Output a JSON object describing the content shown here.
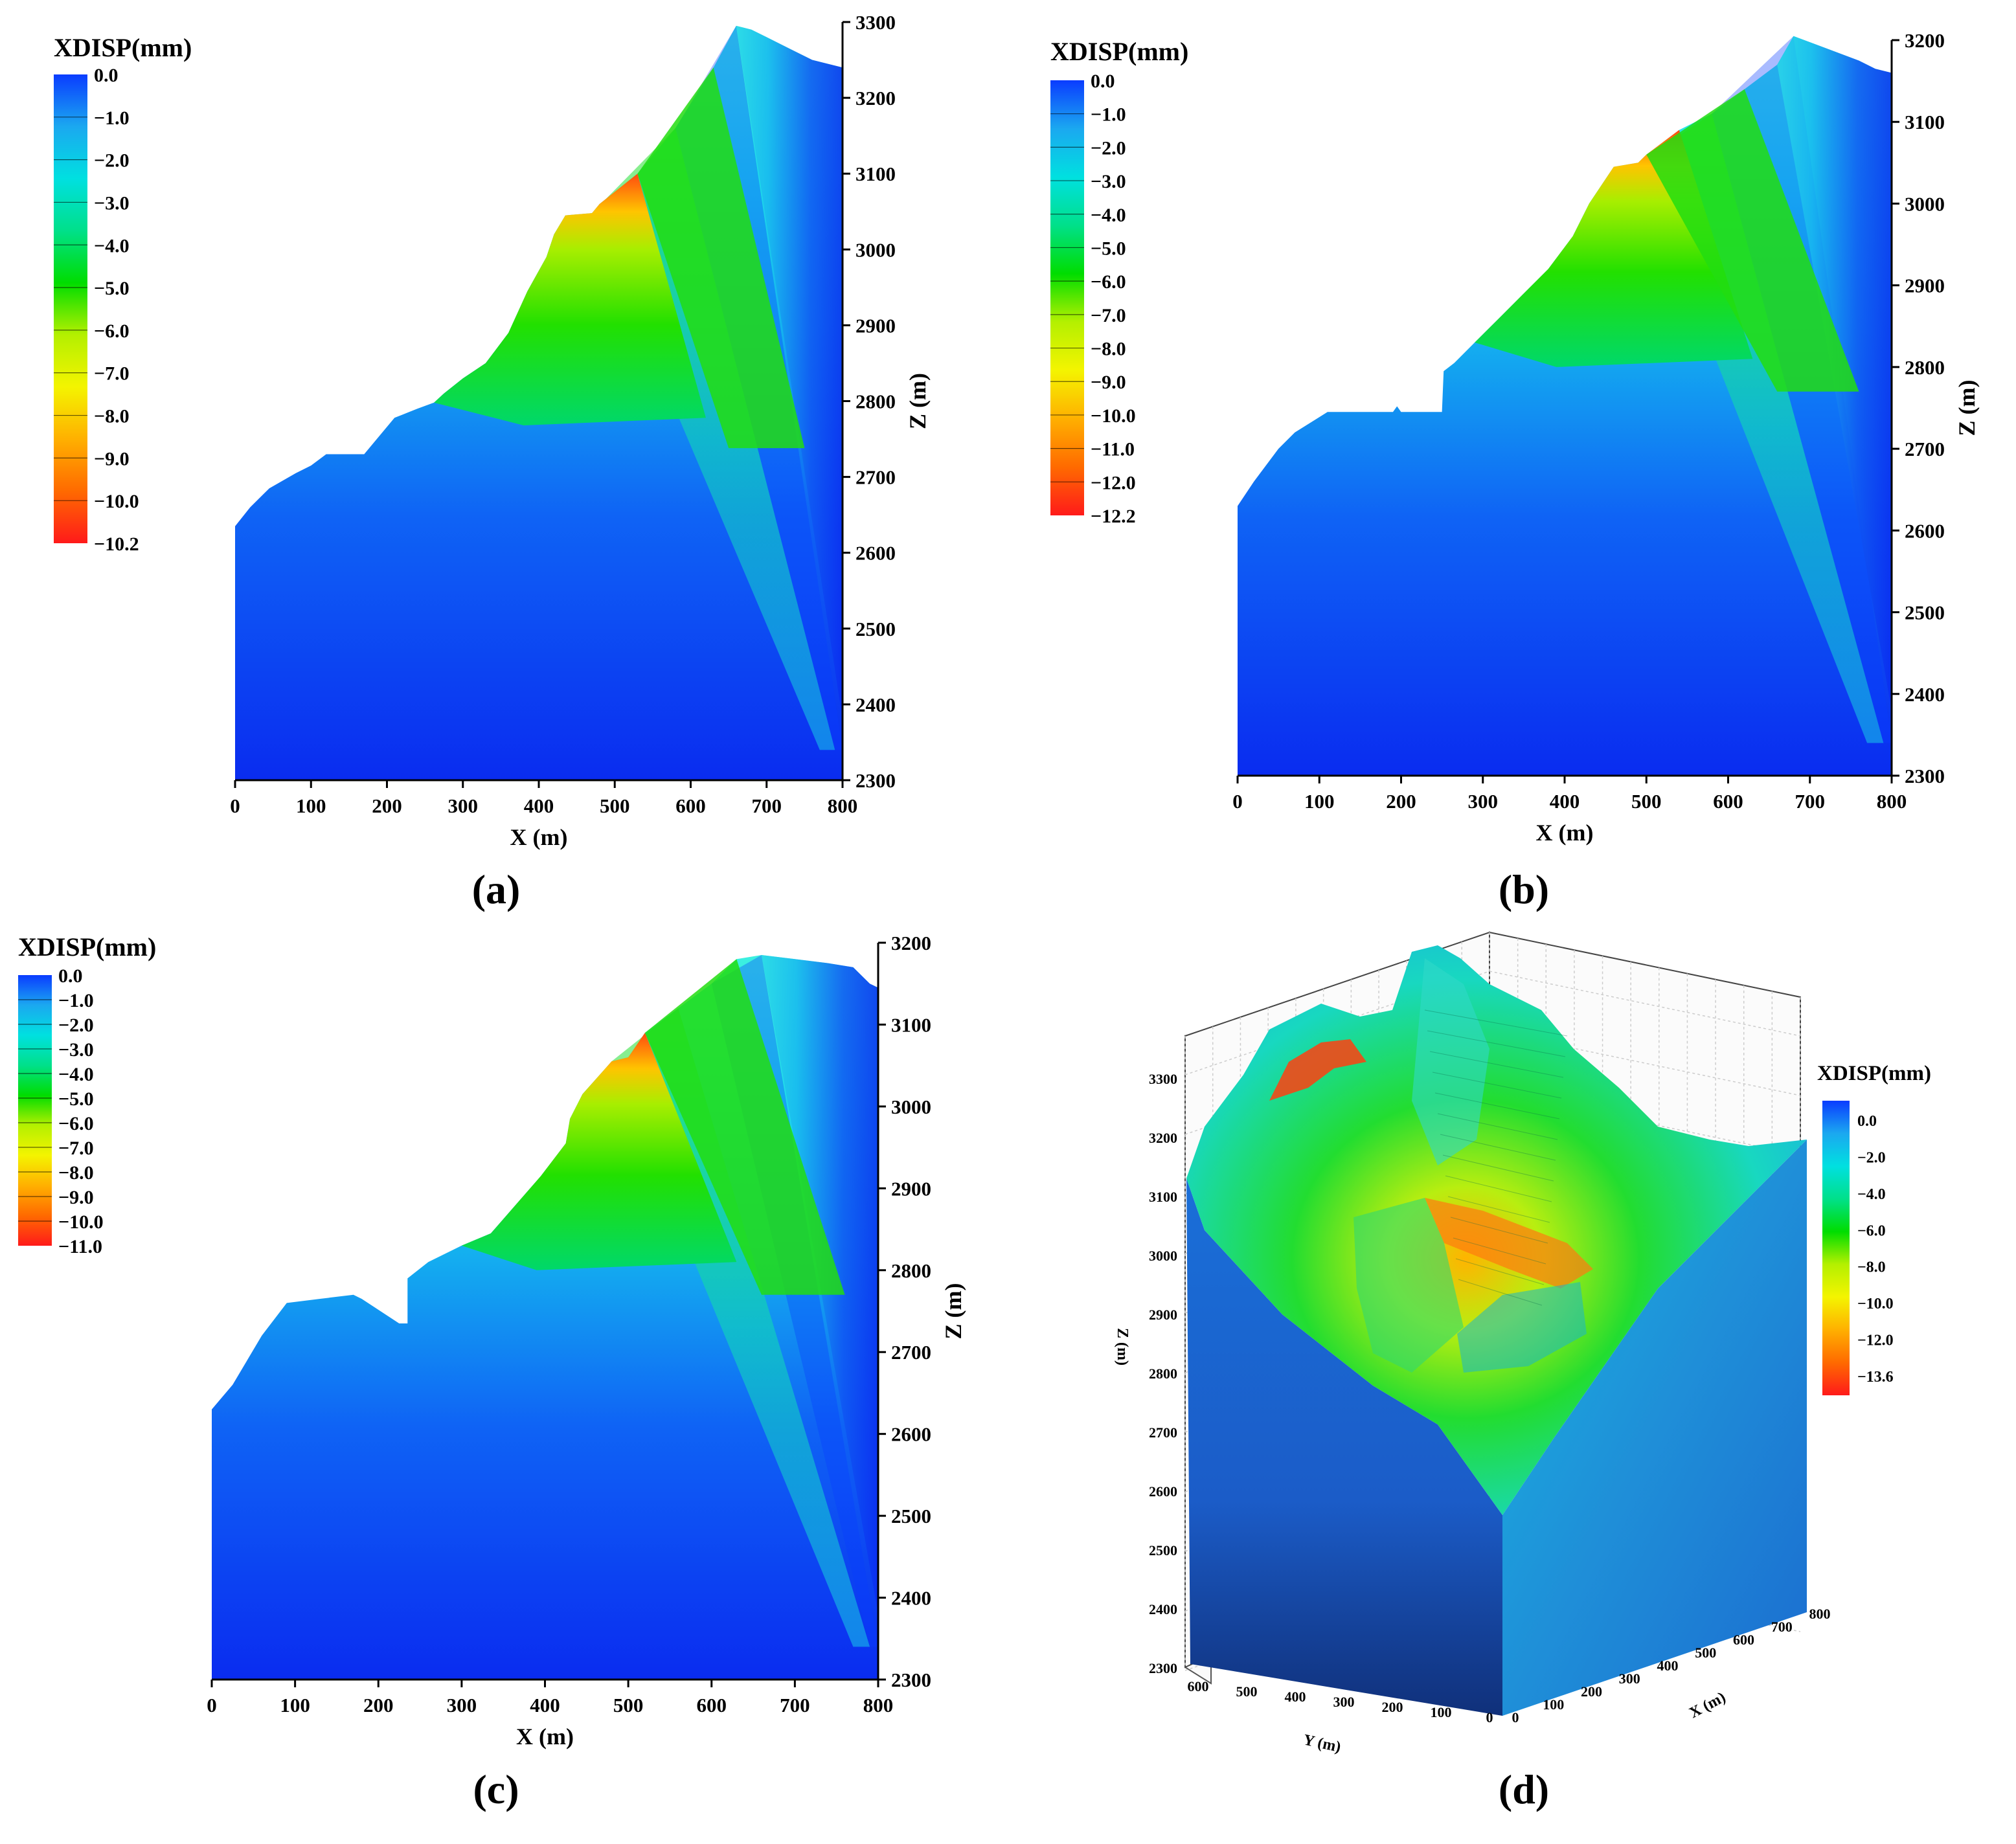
{
  "colorbar_title": "XDISP(mm)",
  "panel_labels": [
    "(a)",
    "(b)",
    "(c)",
    "(d)"
  ],
  "colormap": [
    "#ff1a1a",
    "#ff6a00",
    "#ffb000",
    "#f4f400",
    "#b4f000",
    "#00dd00",
    "#00e08a",
    "#00e0e0",
    "#1ba8f0",
    "#0a3cff"
  ],
  "chart_data": [
    {
      "id": "a",
      "type": "heatmap",
      "title": "",
      "xlabel": "X (m)",
      "ylabel": "Z (m)",
      "xlim": [
        0,
        800
      ],
      "ylim": [
        2300,
        3300
      ],
      "x_ticks": [
        0,
        100,
        200,
        300,
        400,
        500,
        600,
        700,
        800
      ],
      "y_ticks": [
        2300,
        2400,
        2500,
        2600,
        2700,
        2800,
        2900,
        3000,
        3100,
        3200,
        3300
      ],
      "colorbar_ticks": [
        "0.0",
        "−1.0",
        "−2.0",
        "−3.0",
        "−4.0",
        "−5.0",
        "−6.0",
        "−7.0",
        "−8.0",
        "−9.0",
        "−10.0",
        "−10.2"
      ],
      "value_range": [
        -10.2,
        0.0
      ],
      "profile": [
        [
          0,
          2635
        ],
        [
          20,
          2660
        ],
        [
          45,
          2685
        ],
        [
          80,
          2705
        ],
        [
          100,
          2715
        ],
        [
          120,
          2730
        ],
        [
          170,
          2730
        ],
        [
          210,
          2778
        ],
        [
          220,
          2782
        ],
        [
          240,
          2790
        ],
        [
          262,
          2798
        ],
        [
          275,
          2810
        ],
        [
          300,
          2830
        ],
        [
          330,
          2850
        ],
        [
          360,
          2890
        ],
        [
          385,
          2945
        ],
        [
          410,
          2990
        ],
        [
          420,
          3020
        ],
        [
          435,
          3045
        ],
        [
          470,
          3048
        ],
        [
          480,
          3060
        ],
        [
          530,
          3100
        ],
        [
          580,
          3160
        ],
        [
          630,
          3240
        ],
        [
          660,
          3295
        ],
        [
          680,
          3290
        ],
        [
          700,
          3280
        ],
        [
          730,
          3265
        ],
        [
          760,
          3250
        ],
        [
          780,
          3245
        ],
        [
          800,
          3240
        ]
      ],
      "max_disp_point": [
        420,
        3020
      ]
    },
    {
      "id": "b",
      "type": "heatmap",
      "title": "",
      "xlabel": "X (m)",
      "ylabel": "Z (m)",
      "xlim": [
        0,
        800
      ],
      "ylim": [
        2300,
        3200
      ],
      "x_ticks": [
        0,
        100,
        200,
        300,
        400,
        500,
        600,
        700,
        800
      ],
      "y_ticks": [
        2300,
        2400,
        2500,
        2600,
        2700,
        2800,
        2900,
        3000,
        3100,
        3200
      ],
      "colorbar_ticks": [
        "0.0",
        "−1.0",
        "−2.0",
        "−3.0",
        "−4.0",
        "−5.0",
        "−6.0",
        "−7.0",
        "−8.0",
        "−9.0",
        "−10.0",
        "−11.0",
        "−12.0",
        "−12.2"
      ],
      "value_range": [
        -12.2,
        0.0
      ],
      "profile": [
        [
          0,
          2630
        ],
        [
          20,
          2660
        ],
        [
          50,
          2700
        ],
        [
          70,
          2720
        ],
        [
          110,
          2745
        ],
        [
          190,
          2745
        ],
        [
          195,
          2752
        ],
        [
          200,
          2745
        ],
        [
          250,
          2745
        ],
        [
          252,
          2795
        ],
        [
          265,
          2805
        ],
        [
          290,
          2830
        ],
        [
          320,
          2860
        ],
        [
          350,
          2890
        ],
        [
          380,
          2920
        ],
        [
          410,
          2960
        ],
        [
          430,
          3000
        ],
        [
          460,
          3045
        ],
        [
          490,
          3050
        ],
        [
          500,
          3060
        ],
        [
          540,
          3090
        ],
        [
          580,
          3110
        ],
        [
          620,
          3140
        ],
        [
          660,
          3170
        ],
        [
          680,
          3205
        ],
        [
          720,
          3190
        ],
        [
          760,
          3175
        ],
        [
          780,
          3165
        ],
        [
          800,
          3160
        ]
      ],
      "max_disp_point": [
        430,
        3000
      ]
    },
    {
      "id": "c",
      "type": "heatmap",
      "title": "",
      "xlabel": "X (m)",
      "ylabel": "Z (m)",
      "xlim": [
        0,
        800
      ],
      "ylim": [
        2300,
        3200
      ],
      "x_ticks": [
        0,
        100,
        200,
        300,
        400,
        500,
        600,
        700,
        800
      ],
      "y_ticks": [
        2300,
        2400,
        2500,
        2600,
        2700,
        2800,
        2900,
        3000,
        3100,
        3200
      ],
      "colorbar_ticks": [
        "0.0",
        "−1.0",
        "−2.0",
        "−3.0",
        "−4.0",
        "−5.0",
        "−6.0",
        "−7.0",
        "−8.0",
        "−9.0",
        "−10.0",
        "−11.0"
      ],
      "value_range": [
        -11.0,
        0.0
      ],
      "profile": [
        [
          0,
          2630
        ],
        [
          25,
          2660
        ],
        [
          60,
          2720
        ],
        [
          90,
          2760
        ],
        [
          130,
          2765
        ],
        [
          170,
          2770
        ],
        [
          180,
          2765
        ],
        [
          225,
          2735
        ],
        [
          235,
          2735
        ],
        [
          235,
          2790
        ],
        [
          260,
          2810
        ],
        [
          300,
          2830
        ],
        [
          335,
          2845
        ],
        [
          365,
          2880
        ],
        [
          395,
          2915
        ],
        [
          425,
          2955
        ],
        [
          430,
          2985
        ],
        [
          445,
          3015
        ],
        [
          480,
          3055
        ],
        [
          500,
          3060
        ],
        [
          520,
          3090
        ],
        [
          560,
          3120
        ],
        [
          600,
          3150
        ],
        [
          630,
          3180
        ],
        [
          660,
          3185
        ],
        [
          700,
          3180
        ],
        [
          740,
          3175
        ],
        [
          770,
          3170
        ],
        [
          790,
          3150
        ],
        [
          800,
          3145
        ]
      ],
      "max_disp_point": [
        430,
        2985
      ]
    },
    {
      "id": "d",
      "type": "heatmap",
      "title": "",
      "xlabel": "X (m)",
      "ylabel": "Y (m)",
      "zlabel": "Z (m)",
      "x_ticks": [
        0,
        100,
        200,
        300,
        400,
        500,
        600,
        700,
        800
      ],
      "y_ticks": [
        0,
        100,
        200,
        300,
        400,
        500,
        600
      ],
      "z_ticks": [
        2300,
        2400,
        2500,
        2600,
        2700,
        2800,
        2900,
        3000,
        3100,
        3200,
        3300
      ],
      "colorbar_ticks": [
        "0.0",
        "−2.0",
        "−4.0",
        "−6.0",
        "−8.0",
        "−10.0",
        "−12.0",
        "−13.6"
      ],
      "value_range": [
        -13.6,
        0.0
      ]
    }
  ]
}
